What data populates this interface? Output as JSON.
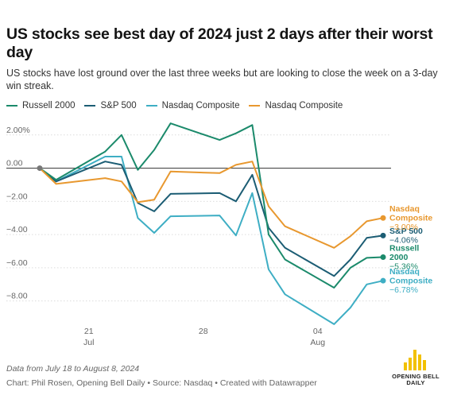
{
  "header": {
    "title": "US stocks see best day of 2024 just 2 days after their worst day",
    "subtitle": "US stocks have lost ground over the last three weeks but are looking to close the week on a 3-day win streak."
  },
  "legend": [
    {
      "label": "Russell 2000",
      "color": "#1b8a6b"
    },
    {
      "label": "S&P 500",
      "color": "#1c5d74"
    },
    {
      "label": "Nasdaq Composite",
      "color": "#3eaec4"
    },
    {
      "label": "Nasdaq Composite",
      "color": "#e8982f"
    }
  ],
  "footer": {
    "source_note": "Data from July 18 to August 8, 2024",
    "credit": "Chart: Phil Rosen, Opening Bell Daily • Source: Nasdaq • Created with Datawrapper",
    "logo_text": "OPENING BELL DAILY"
  },
  "chart_data": {
    "type": "line",
    "title": "US stocks see best day of 2024 just 2 days after their worst day",
    "subtitle": "US stocks have lost ground over the last three weeks but are looking to close the week on a 3-day win streak.",
    "x": [
      "2024-07-18",
      "2024-07-19",
      "2024-07-22",
      "2024-07-23",
      "2024-07-24",
      "2024-07-25",
      "2024-07-26",
      "2024-07-29",
      "2024-07-30",
      "2024-07-31",
      "2024-08-01",
      "2024-08-02",
      "2024-08-05",
      "2024-08-06",
      "2024-08-07",
      "2024-08-08"
    ],
    "x_tick_labels": [
      {
        "date": "2024-07-21",
        "day": "21",
        "month": "Jul"
      },
      {
        "date": "2024-07-28",
        "day": "28",
        "month": ""
      },
      {
        "date": "2024-08-04",
        "day": "04",
        "month": "Aug"
      }
    ],
    "y_ticks": [
      2,
      0,
      -2,
      -4,
      -6,
      -8
    ],
    "y_tick_labels": [
      "2.00%",
      "0.00",
      "−2.00",
      "−4.00",
      "−6.00",
      "−8.00"
    ],
    "ylim": [
      -9.5,
      2.9
    ],
    "grid": true,
    "legend_position": "top-left",
    "series": [
      {
        "name": "Russell 2000",
        "color": "#1b8a6b",
        "end_label": [
          "Russell",
          "2000"
        ],
        "end_value_label": "−5.36%",
        "values": [
          0,
          -0.7,
          1.0,
          2.0,
          -0.1,
          1.1,
          2.7,
          1.7,
          2.1,
          2.6,
          -4.0,
          -5.5,
          -7.2,
          -6.0,
          -5.4,
          -5.36
        ]
      },
      {
        "name": "S&P 500",
        "color": "#1c5d74",
        "end_label": [
          "S&P 500"
        ],
        "end_value_label": "−4.06%",
        "values": [
          0,
          -0.8,
          0.4,
          0.2,
          -2.1,
          -2.6,
          -1.55,
          -1.5,
          -2.0,
          -0.4,
          -3.6,
          -4.8,
          -6.5,
          -5.5,
          -4.2,
          -4.06
        ]
      },
      {
        "name": "Nasdaq Composite",
        "color": "#3eaec4",
        "end_label": [
          "Nasdaq",
          "Composite"
        ],
        "end_value_label": "−6.78%",
        "values": [
          0,
          -0.8,
          0.7,
          0.7,
          -3.0,
          -3.9,
          -2.9,
          -2.85,
          -4.05,
          -1.5,
          -6.1,
          -7.6,
          -9.4,
          -8.4,
          -7.0,
          -6.78
        ]
      },
      {
        "name": "Nasdaq Composite",
        "color": "#e8982f",
        "end_label": [
          "Nasdaq",
          "Composite"
        ],
        "end_value_label": "−3.00%",
        "values": [
          0,
          -0.95,
          -0.6,
          -0.8,
          -2.05,
          -1.9,
          -0.2,
          -0.3,
          0.2,
          0.4,
          -2.3,
          -3.5,
          -4.8,
          -4.1,
          -3.2,
          -3.0
        ]
      }
    ]
  }
}
